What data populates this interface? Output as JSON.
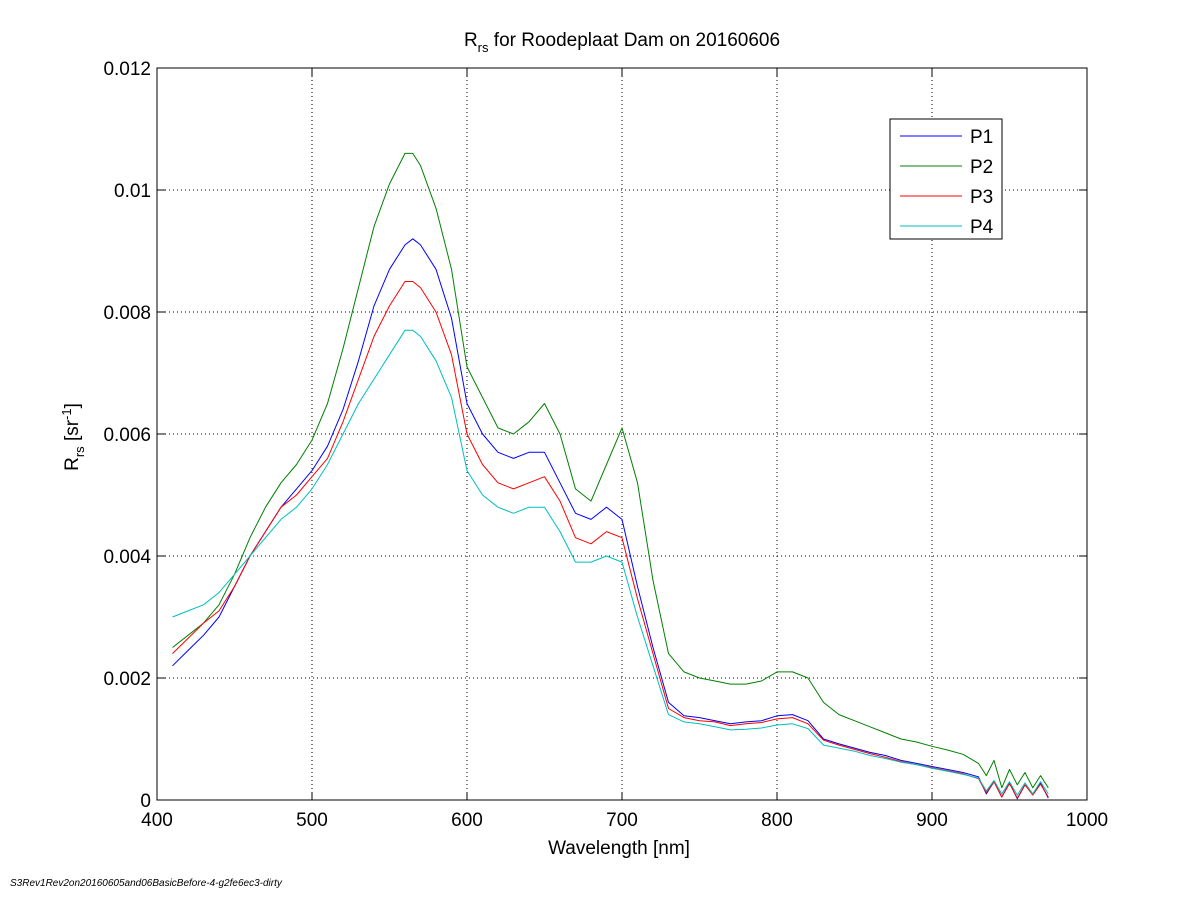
{
  "footer_note": "S3Rev1Rev2on20160605and06BasicBefore-4-g2fe6ec3-dirty",
  "chart_data": {
    "type": "line",
    "title_main": "R",
    "title_sub": "rs",
    "title_rest": " for Roodeplaat Dam on 20160606",
    "xlabel": "Wavelength [nm]",
    "ylabel_main": "R",
    "ylabel_sub": "rs",
    "ylabel_unit": " [sr",
    "ylabel_sup": "-1",
    "ylabel_close": "]",
    "xlim": [
      400,
      1000
    ],
    "ylim": [
      0,
      0.012
    ],
    "xticks": [
      400,
      500,
      600,
      700,
      800,
      900,
      1000
    ],
    "yticks": [
      0,
      0.002,
      0.004,
      0.006,
      0.008,
      0.01,
      0.012
    ],
    "xtick_labels": [
      "400",
      "500",
      "600",
      "700",
      "800",
      "900",
      "1000"
    ],
    "ytick_labels": [
      "0",
      "0.002",
      "0.004",
      "0.006",
      "0.008",
      "0.01",
      "0.012"
    ],
    "grid": true,
    "legend_position": "top-right",
    "series": [
      {
        "name": "P1",
        "color": "#0000ff",
        "points": [
          [
            410,
            0.0022
          ],
          [
            420,
            0.00245
          ],
          [
            430,
            0.0027
          ],
          [
            440,
            0.003
          ],
          [
            450,
            0.0035
          ],
          [
            460,
            0.004
          ],
          [
            470,
            0.0044
          ],
          [
            480,
            0.0048
          ],
          [
            490,
            0.0051
          ],
          [
            500,
            0.0054
          ],
          [
            510,
            0.0058
          ],
          [
            520,
            0.0064
          ],
          [
            530,
            0.0072
          ],
          [
            540,
            0.0081
          ],
          [
            550,
            0.0087
          ],
          [
            560,
            0.0091
          ],
          [
            565,
            0.0092
          ],
          [
            570,
            0.0091
          ],
          [
            580,
            0.0087
          ],
          [
            590,
            0.0079
          ],
          [
            600,
            0.0065
          ],
          [
            610,
            0.006
          ],
          [
            620,
            0.0057
          ],
          [
            630,
            0.0056
          ],
          [
            640,
            0.0057
          ],
          [
            650,
            0.0057
          ],
          [
            660,
            0.0052
          ],
          [
            670,
            0.0047
          ],
          [
            680,
            0.0046
          ],
          [
            690,
            0.0048
          ],
          [
            700,
            0.0046
          ],
          [
            710,
            0.0035
          ],
          [
            720,
            0.0025
          ],
          [
            730,
            0.0016
          ],
          [
            740,
            0.00138
          ],
          [
            750,
            0.00135
          ],
          [
            760,
            0.0013
          ],
          [
            770,
            0.00125
          ],
          [
            780,
            0.00128
          ],
          [
            790,
            0.0013
          ],
          [
            800,
            0.00138
          ],
          [
            810,
            0.0014
          ],
          [
            820,
            0.0013
          ],
          [
            830,
            0.001
          ],
          [
            840,
            0.00092
          ],
          [
            850,
            0.00085
          ],
          [
            860,
            0.00078
          ],
          [
            870,
            0.00073
          ],
          [
            880,
            0.00065
          ],
          [
            890,
            0.0006
          ],
          [
            900,
            0.00055
          ],
          [
            910,
            0.0005
          ],
          [
            920,
            0.00045
          ],
          [
            930,
            0.00038
          ],
          [
            935,
            0.0001
          ],
          [
            940,
            0.0003
          ],
          [
            945,
            5e-05
          ],
          [
            950,
            0.00028
          ],
          [
            955,
            2e-05
          ],
          [
            960,
            0.00025
          ],
          [
            965,
            0.0001
          ],
          [
            970,
            0.00028
          ],
          [
            975,
            3e-05
          ]
        ]
      },
      {
        "name": "P2",
        "color": "#008000",
        "points": [
          [
            410,
            0.0025
          ],
          [
            420,
            0.0027
          ],
          [
            430,
            0.0029
          ],
          [
            440,
            0.0032
          ],
          [
            450,
            0.0037
          ],
          [
            460,
            0.0043
          ],
          [
            470,
            0.0048
          ],
          [
            480,
            0.0052
          ],
          [
            490,
            0.0055
          ],
          [
            500,
            0.0059
          ],
          [
            510,
            0.0065
          ],
          [
            520,
            0.0074
          ],
          [
            530,
            0.0084
          ],
          [
            540,
            0.0094
          ],
          [
            550,
            0.0101
          ],
          [
            560,
            0.0106
          ],
          [
            565,
            0.0106
          ],
          [
            570,
            0.0104
          ],
          [
            580,
            0.0097
          ],
          [
            590,
            0.0087
          ],
          [
            600,
            0.0071
          ],
          [
            610,
            0.0066
          ],
          [
            620,
            0.0061
          ],
          [
            630,
            0.006
          ],
          [
            640,
            0.0062
          ],
          [
            650,
            0.0065
          ],
          [
            660,
            0.006
          ],
          [
            670,
            0.0051
          ],
          [
            680,
            0.0049
          ],
          [
            690,
            0.0055
          ],
          [
            700,
            0.0061
          ],
          [
            710,
            0.0052
          ],
          [
            720,
            0.0036
          ],
          [
            730,
            0.0024
          ],
          [
            740,
            0.0021
          ],
          [
            750,
            0.002
          ],
          [
            760,
            0.00195
          ],
          [
            770,
            0.0019
          ],
          [
            780,
            0.0019
          ],
          [
            790,
            0.00195
          ],
          [
            800,
            0.0021
          ],
          [
            810,
            0.0021
          ],
          [
            820,
            0.002
          ],
          [
            830,
            0.0016
          ],
          [
            840,
            0.0014
          ],
          [
            850,
            0.0013
          ],
          [
            860,
            0.0012
          ],
          [
            870,
            0.0011
          ],
          [
            880,
            0.001
          ],
          [
            890,
            0.00095
          ],
          [
            900,
            0.00088
          ],
          [
            910,
            0.00082
          ],
          [
            920,
            0.00075
          ],
          [
            930,
            0.0006
          ],
          [
            935,
            0.0004
          ],
          [
            940,
            0.00065
          ],
          [
            945,
            0.0002
          ],
          [
            950,
            0.0005
          ],
          [
            955,
            0.00025
          ],
          [
            960,
            0.00045
          ],
          [
            965,
            0.0002
          ],
          [
            970,
            0.0004
          ],
          [
            975,
            0.0002
          ]
        ]
      },
      {
        "name": "P3",
        "color": "#ff0000",
        "points": [
          [
            410,
            0.0024
          ],
          [
            420,
            0.00265
          ],
          [
            430,
            0.0029
          ],
          [
            440,
            0.0031
          ],
          [
            450,
            0.0035
          ],
          [
            460,
            0.004
          ],
          [
            470,
            0.0044
          ],
          [
            480,
            0.0048
          ],
          [
            490,
            0.005
          ],
          [
            500,
            0.0053
          ],
          [
            510,
            0.0056
          ],
          [
            520,
            0.0062
          ],
          [
            530,
            0.0069
          ],
          [
            540,
            0.0076
          ],
          [
            550,
            0.0081
          ],
          [
            560,
            0.0085
          ],
          [
            565,
            0.0085
          ],
          [
            570,
            0.0084
          ],
          [
            580,
            0.008
          ],
          [
            590,
            0.0073
          ],
          [
            600,
            0.006
          ],
          [
            610,
            0.0055
          ],
          [
            620,
            0.0052
          ],
          [
            630,
            0.0051
          ],
          [
            640,
            0.0052
          ],
          [
            650,
            0.0053
          ],
          [
            660,
            0.0049
          ],
          [
            670,
            0.0043
          ],
          [
            680,
            0.0042
          ],
          [
            690,
            0.0044
          ],
          [
            700,
            0.0043
          ],
          [
            710,
            0.0033
          ],
          [
            720,
            0.0024
          ],
          [
            730,
            0.0015
          ],
          [
            740,
            0.00135
          ],
          [
            750,
            0.0013
          ],
          [
            760,
            0.00128
          ],
          [
            770,
            0.00122
          ],
          [
            780,
            0.00125
          ],
          [
            790,
            0.00127
          ],
          [
            800,
            0.00133
          ],
          [
            810,
            0.00135
          ],
          [
            820,
            0.00125
          ],
          [
            830,
            0.00098
          ],
          [
            840,
            0.0009
          ],
          [
            850,
            0.00083
          ],
          [
            860,
            0.00076
          ],
          [
            870,
            0.0007
          ],
          [
            880,
            0.00063
          ],
          [
            890,
            0.00058
          ],
          [
            900,
            0.00053
          ],
          [
            910,
            0.00048
          ],
          [
            920,
            0.00043
          ],
          [
            930,
            0.00035
          ],
          [
            935,
            0.00012
          ],
          [
            940,
            0.0003
          ],
          [
            945,
            5e-05
          ],
          [
            950,
            0.00027
          ],
          [
            955,
            3e-05
          ],
          [
            960,
            0.00025
          ],
          [
            965,
            8e-05
          ],
          [
            970,
            0.00026
          ],
          [
            975,
            5e-05
          ]
        ]
      },
      {
        "name": "P4",
        "color": "#00bfbf",
        "points": [
          [
            410,
            0.003
          ],
          [
            420,
            0.0031
          ],
          [
            430,
            0.0032
          ],
          [
            440,
            0.0034
          ],
          [
            450,
            0.0037
          ],
          [
            460,
            0.004
          ],
          [
            470,
            0.0043
          ],
          [
            480,
            0.0046
          ],
          [
            490,
            0.0048
          ],
          [
            500,
            0.0051
          ],
          [
            510,
            0.0055
          ],
          [
            520,
            0.006
          ],
          [
            530,
            0.0065
          ],
          [
            540,
            0.0069
          ],
          [
            550,
            0.0073
          ],
          [
            560,
            0.0077
          ],
          [
            565,
            0.0077
          ],
          [
            570,
            0.0076
          ],
          [
            580,
            0.0072
          ],
          [
            590,
            0.0066
          ],
          [
            600,
            0.0054
          ],
          [
            610,
            0.005
          ],
          [
            620,
            0.0048
          ],
          [
            630,
            0.0047
          ],
          [
            640,
            0.0048
          ],
          [
            650,
            0.0048
          ],
          [
            660,
            0.0044
          ],
          [
            670,
            0.0039
          ],
          [
            680,
            0.0039
          ],
          [
            690,
            0.004
          ],
          [
            700,
            0.0039
          ],
          [
            710,
            0.003
          ],
          [
            720,
            0.0022
          ],
          [
            730,
            0.0014
          ],
          [
            740,
            0.00128
          ],
          [
            750,
            0.00125
          ],
          [
            760,
            0.0012
          ],
          [
            770,
            0.00115
          ],
          [
            780,
            0.00116
          ],
          [
            790,
            0.00118
          ],
          [
            800,
            0.00123
          ],
          [
            810,
            0.00125
          ],
          [
            820,
            0.00117
          ],
          [
            830,
            0.0009
          ],
          [
            840,
            0.00085
          ],
          [
            850,
            0.0008
          ],
          [
            860,
            0.00073
          ],
          [
            870,
            0.00068
          ],
          [
            880,
            0.00062
          ],
          [
            890,
            0.00058
          ],
          [
            900,
            0.00052
          ],
          [
            910,
            0.00047
          ],
          [
            920,
            0.00042
          ],
          [
            930,
            0.00036
          ],
          [
            935,
            0.00015
          ],
          [
            940,
            0.00032
          ],
          [
            945,
            0.0001
          ],
          [
            950,
            0.0003
          ],
          [
            955,
            8e-05
          ],
          [
            960,
            0.00028
          ],
          [
            965,
            0.0001
          ],
          [
            970,
            0.0003
          ],
          [
            975,
            0.0001
          ]
        ]
      }
    ]
  }
}
